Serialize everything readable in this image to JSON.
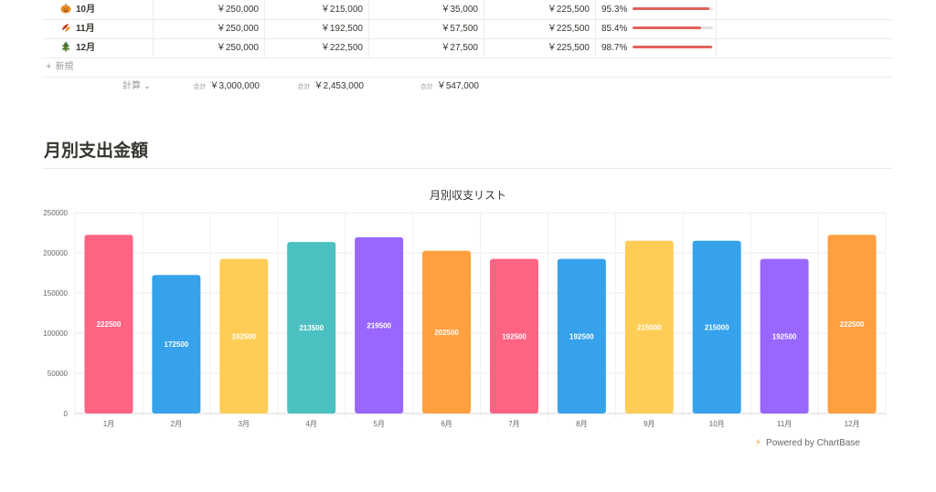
{
  "table": {
    "rows": [
      {
        "name": "10月",
        "icon": "pumpkin-icon",
        "budget": "￥250,000",
        "spent": "￥215,000",
        "remaining": "￥35,000",
        "average": "￥225,500",
        "percent": "95.3%",
        "ratio": 0.953
      },
      {
        "name": "11月",
        "icon": "autumn-leaves-icon",
        "budget": "￥250,000",
        "spent": "￥192,500",
        "remaining": "￥57,500",
        "average": "￥225,500",
        "percent": "85.4%",
        "ratio": 0.854
      },
      {
        "name": "12月",
        "icon": "christmas-tree-icon",
        "budget": "￥250,000",
        "spent": "￥222,500",
        "remaining": "￥27,500",
        "average": "￥225,500",
        "percent": "98.7%",
        "ratio": 0.987
      }
    ],
    "new_label": "新規",
    "calc_label": "計算",
    "sums": [
      {
        "label": "合計",
        "value": "￥3,000,000"
      },
      {
        "label": "合計",
        "value": "￥2,453,000"
      },
      {
        "label": "合計",
        "value": "￥547,000"
      }
    ]
  },
  "section_title": "月別支出金額",
  "powered_by": "Powered by ChartBase",
  "chart_data": {
    "type": "bar",
    "title": "月別収支リスト",
    "categories": [
      "1月",
      "2月",
      "3月",
      "4月",
      "5月",
      "6月",
      "7月",
      "8月",
      "9月",
      "10月",
      "11月",
      "12月"
    ],
    "values": [
      222500,
      172500,
      192500,
      213500,
      219500,
      202500,
      192500,
      192500,
      215000,
      215000,
      192500,
      222500
    ],
    "colors": [
      "#ff6384",
      "#36a2eb",
      "#ffcd56",
      "#4bc0c0",
      "#9966ff",
      "#ff9f40",
      "#ff6384",
      "#36a2eb",
      "#ffcd56",
      "#36a2eb",
      "#9966ff",
      "#ff9f40"
    ],
    "yticks": [
      "0",
      "50000",
      "100000",
      "150000",
      "200000",
      "250000"
    ],
    "ylim": [
      0,
      250000
    ],
    "grid": true,
    "data_labels": true
  }
}
